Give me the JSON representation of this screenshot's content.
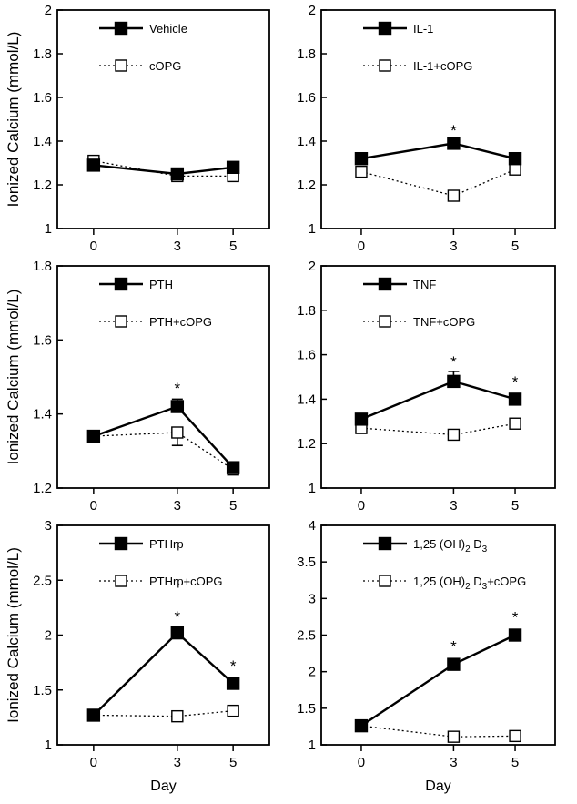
{
  "chart_data": [
    {
      "type": "line",
      "x": [
        0,
        3,
        5
      ],
      "xticks": [
        "0",
        "3",
        "5"
      ],
      "ylim": [
        1,
        2
      ],
      "yticks": [
        "1",
        "1.2",
        "1.4",
        "1.6",
        "1.8",
        "2"
      ],
      "ylabel": "Ionized Calcium (mmol/L)",
      "xlabel": "",
      "legend": "top-left",
      "series": [
        {
          "name": "Vehicle",
          "values": [
            1.29,
            1.25,
            1.28
          ],
          "marker": "filled-square",
          "style": "solid"
        },
        {
          "name": "cOPG",
          "values": [
            1.31,
            1.24,
            1.24
          ],
          "marker": "open-square",
          "style": "dotted"
        }
      ],
      "significance": []
    },
    {
      "type": "line",
      "x": [
        0,
        3,
        5
      ],
      "xticks": [
        "0",
        "3",
        "5"
      ],
      "ylim": [
        1,
        2
      ],
      "yticks": [
        "1",
        "1.2",
        "1.4",
        "1.6",
        "1.8",
        "2"
      ],
      "ylabel": "",
      "xlabel": "",
      "legend": "top-left",
      "series": [
        {
          "name": "IL-1",
          "values": [
            1.32,
            1.39,
            1.32
          ],
          "marker": "filled-square",
          "style": "solid"
        },
        {
          "name": "IL-1+cOPG",
          "values": [
            1.26,
            1.15,
            1.27
          ],
          "marker": "open-square",
          "style": "dotted"
        }
      ],
      "significance": [
        {
          "x": 3,
          "label": "*",
          "y": 1.45
        }
      ]
    },
    {
      "type": "line",
      "x": [
        0,
        3,
        5
      ],
      "xticks": [
        "0",
        "3",
        "5"
      ],
      "ylim": [
        1.2,
        1.8
      ],
      "yticks": [
        "1.2",
        "1.4",
        "1.6",
        "1.8"
      ],
      "ylabel": "Ionized Calcium (mmol/L)",
      "xlabel": "",
      "legend": "top-left",
      "series": [
        {
          "name": "PTH",
          "values": [
            1.34,
            1.42,
            1.255
          ],
          "errors": [
            0,
            0.02,
            0
          ],
          "marker": "filled-square",
          "style": "solid"
        },
        {
          "name": "PTH+cOPG",
          "values": [
            1.34,
            1.35,
            1.25
          ],
          "errors": [
            0,
            0.035,
            0
          ],
          "marker": "open-square",
          "style": "dotted"
        }
      ],
      "significance": [
        {
          "x": 3,
          "label": "*",
          "y": 1.47
        }
      ]
    },
    {
      "type": "line",
      "x": [
        0,
        3,
        5
      ],
      "xticks": [
        "0",
        "3",
        "5"
      ],
      "ylim": [
        1,
        2
      ],
      "yticks": [
        "1",
        "1.2",
        "1.4",
        "1.6",
        "1.8",
        "2"
      ],
      "ylabel": "",
      "xlabel": "",
      "legend": "top-left",
      "series": [
        {
          "name": "TNF",
          "values": [
            1.31,
            1.48,
            1.4
          ],
          "errors": [
            0,
            0.045,
            0
          ],
          "marker": "filled-square",
          "style": "solid"
        },
        {
          "name": "TNF+cOPG",
          "values": [
            1.27,
            1.24,
            1.29
          ],
          "marker": "open-square",
          "style": "dotted"
        }
      ],
      "significance": [
        {
          "x": 3,
          "label": "*",
          "y": 1.57
        },
        {
          "x": 5,
          "label": "*",
          "y": 1.48
        }
      ]
    },
    {
      "type": "line",
      "x": [
        0,
        3,
        5
      ],
      "xticks": [
        "0",
        "3",
        "5"
      ],
      "ylim": [
        1,
        3
      ],
      "yticks": [
        "1",
        "1.5",
        "2",
        "2.5",
        "3"
      ],
      "ylabel": "Ionized Calcium (mmol/L)",
      "xlabel": "Day",
      "legend": "top-left",
      "series": [
        {
          "name": "PTHrp",
          "values": [
            1.27,
            2.02,
            1.56
          ],
          "marker": "filled-square",
          "style": "solid"
        },
        {
          "name": "PTHrp+cOPG",
          "values": [
            1.27,
            1.26,
            1.31
          ],
          "marker": "open-square",
          "style": "dotted"
        }
      ],
      "significance": [
        {
          "x": 3,
          "label": "*",
          "y": 2.17
        },
        {
          "x": 5,
          "label": "*",
          "y": 1.72
        }
      ]
    },
    {
      "type": "line",
      "x": [
        0,
        3,
        5
      ],
      "xticks": [
        "0",
        "3",
        "5"
      ],
      "ylim": [
        1,
        4
      ],
      "yticks": [
        "1",
        "1.5",
        "2",
        "2.5",
        "3",
        "3.5",
        "4"
      ],
      "ylabel": "",
      "xlabel": "Day",
      "legend": "top-left",
      "series": [
        {
          "name": "1,25 (OH)2 D3",
          "values": [
            1.26,
            2.1,
            2.5
          ],
          "marker": "filled-square",
          "style": "solid"
        },
        {
          "name": "1,25 (OH)2 D3+cOPG",
          "values": [
            1.26,
            1.11,
            1.12
          ],
          "marker": "open-square",
          "style": "dotted"
        }
      ],
      "significance": [
        {
          "x": 3,
          "label": "*",
          "y": 2.35
        },
        {
          "x": 5,
          "label": "*",
          "y": 2.75
        }
      ]
    }
  ]
}
